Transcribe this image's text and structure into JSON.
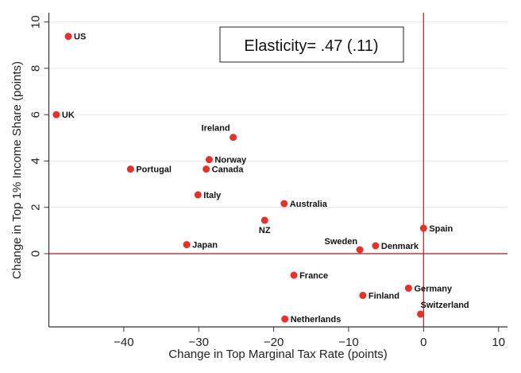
{
  "chart_data": {
    "type": "scatter",
    "title": "",
    "xlabel": "Change in Top Marginal Tax Rate (points)",
    "ylabel": "Change in Top 1% Income Share (points)",
    "xlim": [
      -50,
      11.2
    ],
    "ylim": [
      -3.16,
      10.4
    ],
    "xticks": [
      -40,
      -30,
      -20,
      -10,
      0,
      10
    ],
    "xtick_labels": [
      "−40",
      "−30",
      "−20",
      "−10",
      "0",
      "10"
    ],
    "yticks": [
      0,
      2,
      4,
      6,
      8,
      10
    ],
    "ytick_labels": [
      "0",
      "2",
      "4",
      "6",
      "8",
      "10"
    ],
    "grid": "horizontal",
    "reference_lines": {
      "x": 0,
      "y": 0,
      "color": "#c0272d"
    },
    "annotation": "Elasticity= .47 (.11)",
    "marker_color": "#e8302b",
    "points": [
      {
        "label": "US",
        "x": -47.4,
        "y": 9.38
      },
      {
        "label": "UK",
        "x": -49.0,
        "y": 6.0
      },
      {
        "label": "Ireland",
        "x": -25.4,
        "y": 5.02
      },
      {
        "label": "Norway",
        "x": -28.6,
        "y": 4.06
      },
      {
        "label": "Canada",
        "x": -29.0,
        "y": 3.65
      },
      {
        "label": "Portugal",
        "x": -39.1,
        "y": 3.65
      },
      {
        "label": "Italy",
        "x": -30.1,
        "y": 2.54
      },
      {
        "label": "Australia",
        "x": -18.6,
        "y": 2.16
      },
      {
        "label": "NZ",
        "x": -21.2,
        "y": 1.44
      },
      {
        "label": "Japan",
        "x": -31.6,
        "y": 0.39
      },
      {
        "label": "Sweden",
        "x": -8.5,
        "y": 0.17
      },
      {
        "label": "Denmark",
        "x": -6.4,
        "y": 0.34
      },
      {
        "label": "Spain",
        "x": 0.0,
        "y": 1.1
      },
      {
        "label": "France",
        "x": -17.3,
        "y": -0.93
      },
      {
        "label": "Germany",
        "x": -2.0,
        "y": -1.49
      },
      {
        "label": "Finland",
        "x": -8.1,
        "y": -1.8
      },
      {
        "label": "Switzerland",
        "x": -0.4,
        "y": -2.61
      },
      {
        "label": "Netherlands",
        "x": -18.5,
        "y": -2.82
      }
    ]
  }
}
